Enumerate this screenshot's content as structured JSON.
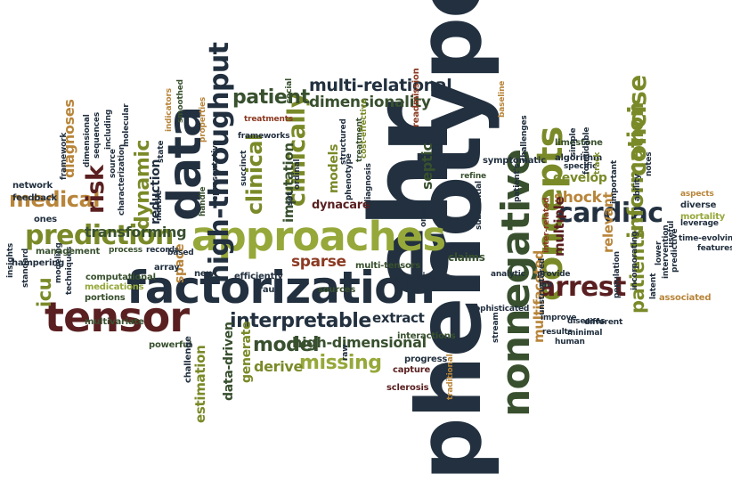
{
  "colors": {
    "navy": "#22303f",
    "maroon": "#5a1f20",
    "olive": "#7a8a28",
    "lime": "#96a83a",
    "tan": "#b8853a",
    "rust": "#8c3a22",
    "teal": "#2b4a3a",
    "green": "#38502e"
  },
  "words": [
    "phenotypes",
    "ehr",
    "factorization",
    "approaches",
    "tensor",
    "data",
    "nonnegative",
    "concepts",
    "high-throughput",
    "prediction",
    "cardiac",
    "arrest",
    "clinically",
    "clinical",
    "medical",
    "information",
    "concise",
    "risk",
    "interpretable",
    "patients",
    "model",
    "missing",
    "dynamic",
    "patient",
    "multi-relational",
    "dimensionality",
    "sparse",
    "icu",
    "multifaceted",
    "shock",
    "develop",
    "multiple",
    "diagnoses",
    "transforming",
    "high-dimensional",
    "relevant",
    "derive",
    "extract",
    "estimation",
    "data-driven",
    "generate",
    "imputation",
    "models",
    "septic",
    "dynacare",
    "space",
    "reduction",
    "claims",
    "limestone",
    "algorithm",
    "baseline",
    "readmission",
    "multi-tensors",
    "reasoning",
    "fraud",
    "sources",
    "interactions",
    "progress",
    "capture",
    "sclerosis",
    "traditional",
    "powerful",
    "challenge",
    "efficiently",
    "new",
    "array",
    "portions",
    "multivariate",
    "medications",
    "computational",
    "modeling",
    "techniques",
    "management",
    "hampering",
    "insights",
    "standard",
    "ones",
    "feedback",
    "network",
    "framework",
    "dimensional",
    "sequences",
    "including",
    "characterization",
    "source",
    "molecular",
    "indicators",
    "smoothed",
    "state",
    "properties",
    "marble",
    "based",
    "records",
    "process",
    "treatments",
    "social",
    "frameworks",
    "succinct",
    "representative",
    "handle",
    "ordinal",
    "set",
    "structured",
    "treatment",
    "phenotype",
    "diagnosis",
    "cost-effective",
    "onset",
    "refine",
    "substantial",
    "symptomatic",
    "patient's",
    "challenges",
    "inter-related",
    "unstructured",
    "simple",
    "specific",
    "formidable",
    "track",
    "important",
    "notes",
    "ability",
    "aspects",
    "diverse",
    "mortality",
    "leverage",
    "time-evolving",
    "features",
    "intervention",
    "predictive",
    "useful",
    "lower",
    "latent",
    "associated",
    "incorporating",
    "population",
    "different",
    "diseases",
    "minimal",
    "improve",
    "results",
    "human",
    "provide",
    "lab",
    "analytic",
    "sophisticated",
    "stream",
    "raw"
  ]
}
